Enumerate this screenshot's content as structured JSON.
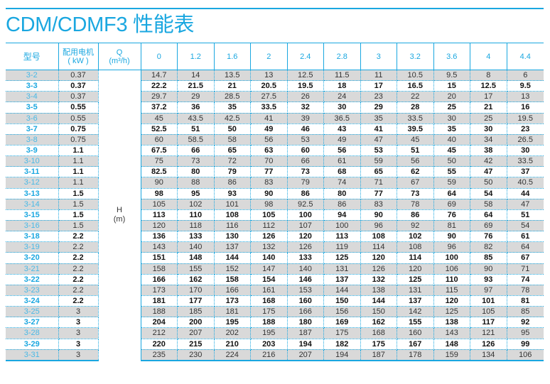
{
  "title": "CDM/CDMF3 性能表",
  "colors": {
    "accent": "#1aa7e0",
    "row_gray": "#d9d9d9"
  },
  "header": {
    "model": "型号",
    "power_line1": "配用电机",
    "power_line2": "( kW )",
    "q_line1": "Q",
    "q_line2": "(m³/h)",
    "flows": [
      "0",
      "1.2",
      "1.6",
      "2",
      "2.4",
      "2.8",
      "3",
      "3.2",
      "3.6",
      "4",
      "4.4"
    ]
  },
  "h_label": {
    "line1": "H",
    "line2": "(m)"
  },
  "rows": [
    {
      "model": "3-2",
      "power": "0.37",
      "h": [
        "14.7",
        "14",
        "13.5",
        "13",
        "12.5",
        "11.5",
        "11",
        "10.5",
        "9.5",
        "8",
        "6"
      ]
    },
    {
      "model": "3-3",
      "power": "0.37",
      "h": [
        "22.2",
        "21.5",
        "21",
        "20.5",
        "19.5",
        "18",
        "17",
        "16.5",
        "15",
        "12.5",
        "9.5"
      ]
    },
    {
      "model": "3-4",
      "power": "0.37",
      "h": [
        "29.7",
        "29",
        "28.5",
        "27.5",
        "26",
        "24",
        "23",
        "22",
        "20",
        "17",
        "13"
      ]
    },
    {
      "model": "3-5",
      "power": "0.55",
      "h": [
        "37.2",
        "36",
        "35",
        "33.5",
        "32",
        "30",
        "29",
        "28",
        "25",
        "21",
        "16"
      ]
    },
    {
      "model": "3-6",
      "power": "0.55",
      "h": [
        "45",
        "43.5",
        "42.5",
        "41",
        "39",
        "36.5",
        "35",
        "33.5",
        "30",
        "25",
        "19.5"
      ]
    },
    {
      "model": "3-7",
      "power": "0.75",
      "h": [
        "52.5",
        "51",
        "50",
        "49",
        "46",
        "43",
        "41",
        "39.5",
        "35",
        "30",
        "23"
      ]
    },
    {
      "model": "3-8",
      "power": "0.75",
      "h": [
        "60",
        "58.5",
        "58",
        "56",
        "53",
        "49",
        "47",
        "45",
        "40",
        "34",
        "26.5"
      ]
    },
    {
      "model": "3-9",
      "power": "1.1",
      "h": [
        "67.5",
        "66",
        "65",
        "63",
        "60",
        "56",
        "53",
        "51",
        "45",
        "38",
        "30"
      ]
    },
    {
      "model": "3-10",
      "power": "1.1",
      "h": [
        "75",
        "73",
        "72",
        "70",
        "66",
        "61",
        "59",
        "56",
        "50",
        "42",
        "33.5"
      ]
    },
    {
      "model": "3-11",
      "power": "1.1",
      "h": [
        "82.5",
        "80",
        "79",
        "77",
        "73",
        "68",
        "65",
        "62",
        "55",
        "47",
        "37"
      ]
    },
    {
      "model": "3-12",
      "power": "1.1",
      "h": [
        "90",
        "88",
        "86",
        "83",
        "79",
        "74",
        "71",
        "67",
        "59",
        "50",
        "40.5"
      ]
    },
    {
      "model": "3-13",
      "power": "1.5",
      "h": [
        "98",
        "95",
        "93",
        "90",
        "86",
        "80",
        "77",
        "73",
        "64",
        "54",
        "44"
      ]
    },
    {
      "model": "3-14",
      "power": "1.5",
      "h": [
        "105",
        "102",
        "101",
        "98",
        "92.5",
        "86",
        "83",
        "78",
        "69",
        "58",
        "47"
      ]
    },
    {
      "model": "3-15",
      "power": "1.5",
      "h": [
        "113",
        "110",
        "108",
        "105",
        "100",
        "94",
        "90",
        "86",
        "76",
        "64",
        "51"
      ]
    },
    {
      "model": "3-16",
      "power": "1.5",
      "h": [
        "120",
        "118",
        "116",
        "112",
        "107",
        "100",
        "96",
        "92",
        "81",
        "69",
        "54"
      ]
    },
    {
      "model": "3-18",
      "power": "2.2",
      "h": [
        "136",
        "133",
        "130",
        "126",
        "120",
        "113",
        "108",
        "102",
        "90",
        "76",
        "61"
      ]
    },
    {
      "model": "3-19",
      "power": "2.2",
      "h": [
        "143",
        "140",
        "137",
        "132",
        "126",
        "119",
        "114",
        "108",
        "96",
        "82",
        "64"
      ]
    },
    {
      "model": "3-20",
      "power": "2.2",
      "h": [
        "151",
        "148",
        "144",
        "140",
        "133",
        "125",
        "120",
        "114",
        "100",
        "85",
        "67"
      ]
    },
    {
      "model": "3-21",
      "power": "2.2",
      "h": [
        "158",
        "155",
        "152",
        "147",
        "140",
        "131",
        "126",
        "120",
        "106",
        "90",
        "71"
      ]
    },
    {
      "model": "3-22",
      "power": "2.2",
      "h": [
        "166",
        "162",
        "158",
        "154",
        "146",
        "137",
        "132",
        "125",
        "110",
        "93",
        "74"
      ]
    },
    {
      "model": "3-23",
      "power": "2.2",
      "h": [
        "173",
        "170",
        "166",
        "161",
        "153",
        "144",
        "138",
        "131",
        "115",
        "97",
        "78"
      ]
    },
    {
      "model": "3-24",
      "power": "2.2",
      "h": [
        "181",
        "177",
        "173",
        "168",
        "160",
        "150",
        "144",
        "137",
        "120",
        "101",
        "81"
      ]
    },
    {
      "model": "3-25",
      "power": "3",
      "h": [
        "188",
        "185",
        "181",
        "175",
        "166",
        "156",
        "150",
        "142",
        "125",
        "105",
        "85"
      ]
    },
    {
      "model": "3-27",
      "power": "3",
      "h": [
        "204",
        "200",
        "195",
        "188",
        "180",
        "169",
        "162",
        "155",
        "138",
        "117",
        "92"
      ]
    },
    {
      "model": "3-28",
      "power": "3",
      "h": [
        "212",
        "207",
        "202",
        "195",
        "187",
        "175",
        "168",
        "160",
        "143",
        "121",
        "95"
      ]
    },
    {
      "model": "3-29",
      "power": "3",
      "h": [
        "220",
        "215",
        "210",
        "203",
        "194",
        "182",
        "175",
        "167",
        "148",
        "126",
        "99"
      ]
    },
    {
      "model": "3-31",
      "power": "3",
      "h": [
        "235",
        "230",
        "224",
        "216",
        "207",
        "194",
        "187",
        "178",
        "159",
        "134",
        "106"
      ]
    }
  ]
}
